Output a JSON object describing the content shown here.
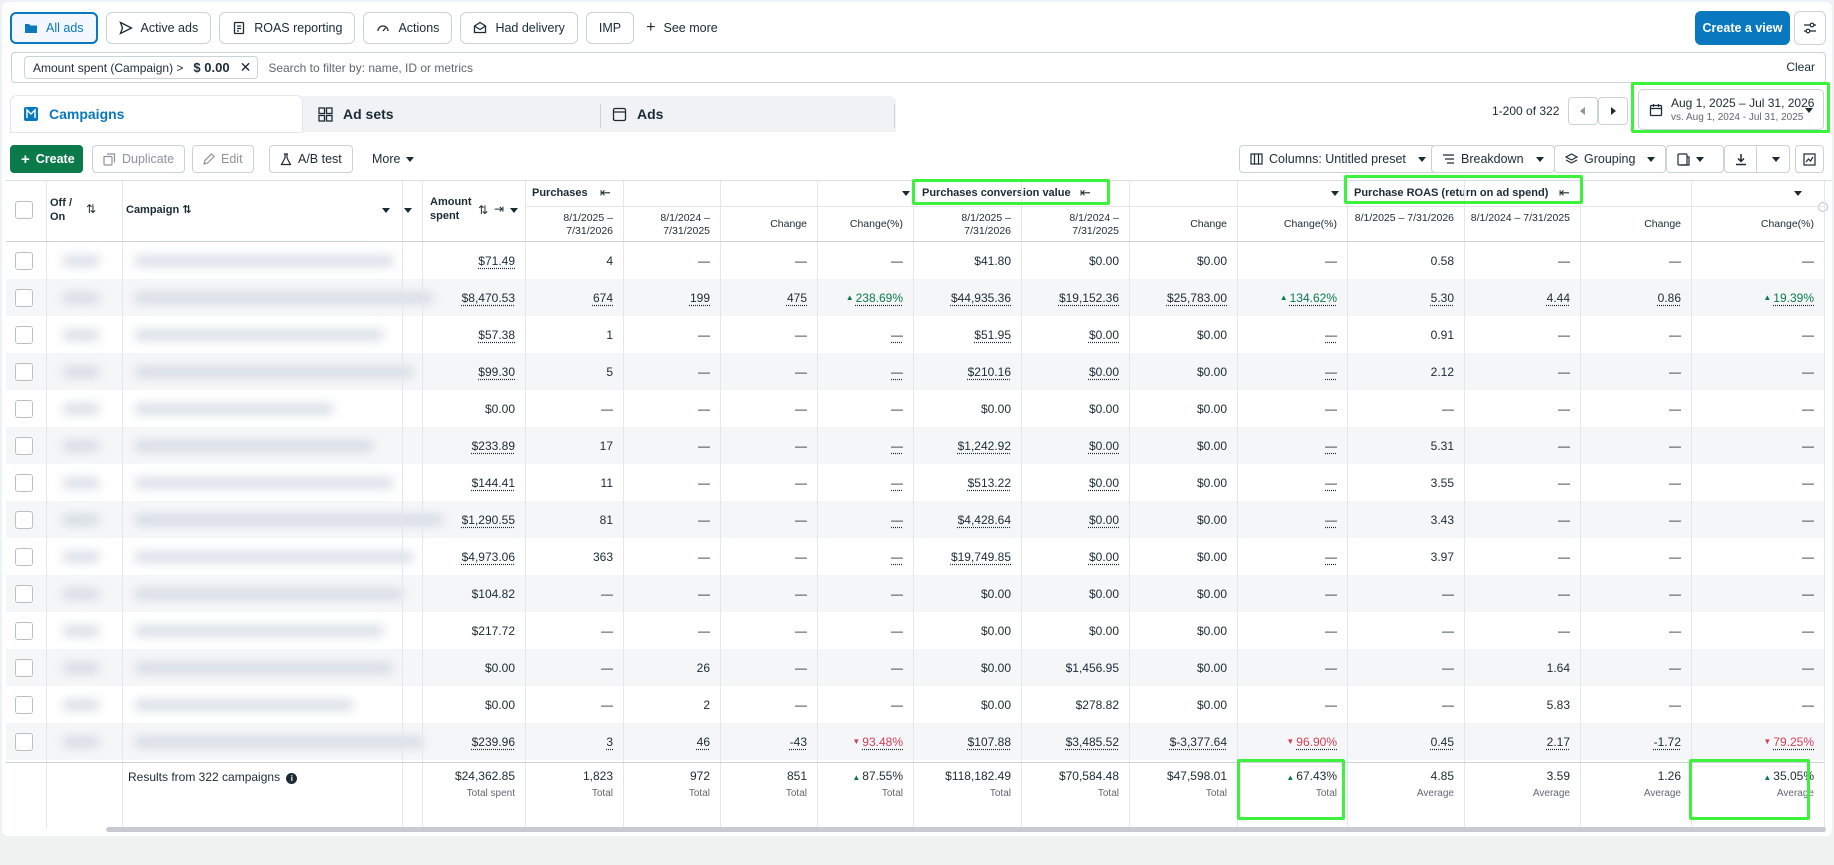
{
  "viewbar": {
    "items": [
      {
        "label": "All ads",
        "icon": "folder-icon",
        "active": true
      },
      {
        "label": "Active ads",
        "icon": "send-icon"
      },
      {
        "label": "ROAS reporting",
        "icon": "report-icon"
      },
      {
        "label": "Actions",
        "icon": "gauge-icon"
      },
      {
        "label": "Had delivery",
        "icon": "delivery-icon"
      },
      {
        "label": "IMP"
      },
      {
        "label": "See more",
        "icon": "plus-icon"
      }
    ],
    "create_view": "Create a view"
  },
  "filter": {
    "chip_label": "Amount spent (Campaign) >",
    "chip_value": "$ 0.00",
    "placeholder": "Search to filter by: name, ID or metrics",
    "clear": "Clear"
  },
  "levels": {
    "campaigns": "Campaigns",
    "adsets": "Ad sets",
    "ads": "Ads"
  },
  "pager": {
    "text": "1-200 of 322"
  },
  "date": {
    "main": "Aug 1, 2025 – Jul 31, 2026",
    "compare": "vs. Aug 1, 2024 - Jul 31, 2025"
  },
  "toolbar": {
    "create": "Create",
    "duplicate": "Duplicate",
    "edit": "Edit",
    "ab_test": "A/B test",
    "more": "More",
    "columns": "Columns: Untitled preset",
    "breakdown": "Breakdown",
    "grouping": "Grouping"
  },
  "table": {
    "headers": {
      "off_on": "Off / On",
      "campaign": "Campaign",
      "amount_spent": "Amount spent",
      "purchases": "Purchases",
      "conversion_value": "Purchases conversion value",
      "roas": "Purchase ROAS (return on ad spend)",
      "period_a": "8/1/2025 – 7/31/2026",
      "period_b": "8/1/2024 – 7/31/2025",
      "change": "Change",
      "change_pct": "Change(%)"
    },
    "rows": [
      [
        "$71.49",
        "4",
        "—",
        "—",
        "—",
        "$41.80",
        "$0.00",
        "$0.00",
        "—",
        "0.58",
        "—",
        "—",
        "—"
      ],
      [
        "$8,470.53",
        "674",
        "199",
        "475",
        "238.69%",
        "$44,935.36",
        "$19,152.36",
        "$25,783.00",
        "134.62%",
        "5.30",
        "4.44",
        "0.86",
        "19.39%"
      ],
      [
        "$57.38",
        "1",
        "—",
        "—",
        "—",
        "$51.95",
        "$0.00",
        "$0.00",
        "—",
        "0.91",
        "—",
        "—",
        "—"
      ],
      [
        "$99.30",
        "5",
        "—",
        "—",
        "—",
        "$210.16",
        "$0.00",
        "$0.00",
        "—",
        "2.12",
        "—",
        "—",
        "—"
      ],
      [
        "$0.00",
        "—",
        "—",
        "—",
        "—",
        "$0.00",
        "$0.00",
        "$0.00",
        "—",
        "—",
        "—",
        "—",
        "—"
      ],
      [
        "$233.89",
        "17",
        "—",
        "—",
        "—",
        "$1,242.92",
        "$0.00",
        "$0.00",
        "—",
        "5.31",
        "—",
        "—",
        "—"
      ],
      [
        "$144.41",
        "11",
        "—",
        "—",
        "—",
        "$513.22",
        "$0.00",
        "$0.00",
        "—",
        "3.55",
        "—",
        "—",
        "—"
      ],
      [
        "$1,290.55",
        "81",
        "—",
        "—",
        "—",
        "$4,428.64",
        "$0.00",
        "$0.00",
        "—",
        "3.43",
        "—",
        "—",
        "—"
      ],
      [
        "$4,973.06",
        "363",
        "—",
        "—",
        "—",
        "$19,749.85",
        "$0.00",
        "$0.00",
        "—",
        "3.97",
        "—",
        "—",
        "—"
      ],
      [
        "$104.82",
        "—",
        "—",
        "—",
        "—",
        "$0.00",
        "$0.00",
        "$0.00",
        "—",
        "—",
        "—",
        "—",
        "—"
      ],
      [
        "$217.72",
        "—",
        "—",
        "—",
        "—",
        "$0.00",
        "$0.00",
        "$0.00",
        "—",
        "—",
        "—",
        "—",
        "—"
      ],
      [
        "$0.00",
        "—",
        "26",
        "—",
        "—",
        "$0.00",
        "$1,456.95",
        "$0.00",
        "—",
        "—",
        "1.64",
        "—",
        "—"
      ],
      [
        "$0.00",
        "—",
        "2",
        "—",
        "—",
        "$0.00",
        "$278.82",
        "$0.00",
        "—",
        "—",
        "5.83",
        "—",
        "—"
      ],
      [
        "$239.96",
        "3",
        "46",
        "-43",
        "93.48%",
        "$107.88",
        "$3,485.52",
        "$-3,377.64",
        "96.90%",
        "0.45",
        "2.17",
        "-1.72",
        "79.25%"
      ]
    ],
    "trend": {
      "1": {
        "4": "up",
        "8": "up",
        "12": "up"
      },
      "13": {
        "4": "down",
        "8": "down",
        "12": "down"
      }
    },
    "underlined": [
      [
        0
      ],
      [
        0,
        1,
        2,
        3,
        4,
        5,
        6,
        7,
        8,
        9,
        10,
        11,
        12
      ],
      [
        0,
        4,
        5,
        6,
        8
      ],
      [
        0,
        4,
        5,
        6,
        8
      ],
      [],
      [
        0,
        4,
        5,
        6,
        8
      ],
      [
        0,
        4,
        5,
        6,
        8
      ],
      [
        0,
        4,
        5,
        6,
        8
      ],
      [
        0,
        4,
        5,
        6,
        8
      ],
      [],
      [],
      [],
      [],
      [
        0,
        1,
        2,
        3,
        4,
        5,
        6,
        7,
        8,
        9,
        10,
        11,
        12
      ]
    ],
    "totals": {
      "label": "Results from 322 campaigns",
      "values": [
        "$24,362.85",
        "1,823",
        "972",
        "851",
        "87.55%",
        "$118,182.49",
        "$70,584.48",
        "$47,598.01",
        "67.43%",
        "4.85",
        "3.59",
        "1.26",
        "35.05%"
      ],
      "labels": [
        "Total spent",
        "Total",
        "Total",
        "Total",
        "Total",
        "Total",
        "Total",
        "Total",
        "Total",
        "Average",
        "Average",
        "Average",
        "Average"
      ]
    }
  }
}
